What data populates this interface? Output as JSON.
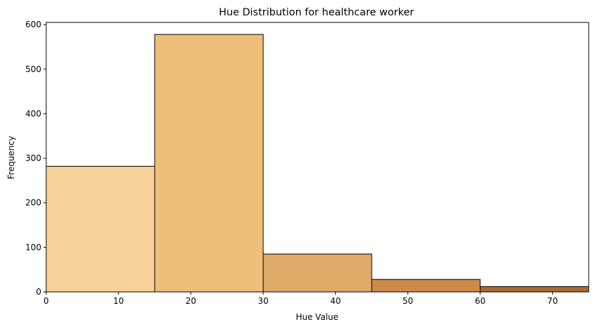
{
  "chart_data": {
    "type": "bar",
    "title": "Hue Distribution for healthcare worker",
    "xlabel": "Hue Value",
    "ylabel": "Frequency",
    "xlim": [
      0,
      75
    ],
    "ylim": [
      0,
      605
    ],
    "xticks": [
      0,
      10,
      20,
      30,
      40,
      50,
      60,
      70
    ],
    "yticks": [
      0,
      100,
      200,
      300,
      400,
      500,
      600
    ],
    "grid": false,
    "bins": [
      {
        "start": 0,
        "end": 15,
        "value": 282,
        "color": "#f8d29b"
      },
      {
        "start": 15,
        "end": 30,
        "value": 578,
        "color": "#eebe7b"
      },
      {
        "start": 30,
        "end": 45,
        "value": 85,
        "color": "#dfaa68"
      },
      {
        "start": 45,
        "end": 60,
        "value": 28,
        "color": "#cb8c4a"
      },
      {
        "start": 60,
        "end": 75,
        "value": 12,
        "color": "#a96b32"
      }
    ]
  }
}
